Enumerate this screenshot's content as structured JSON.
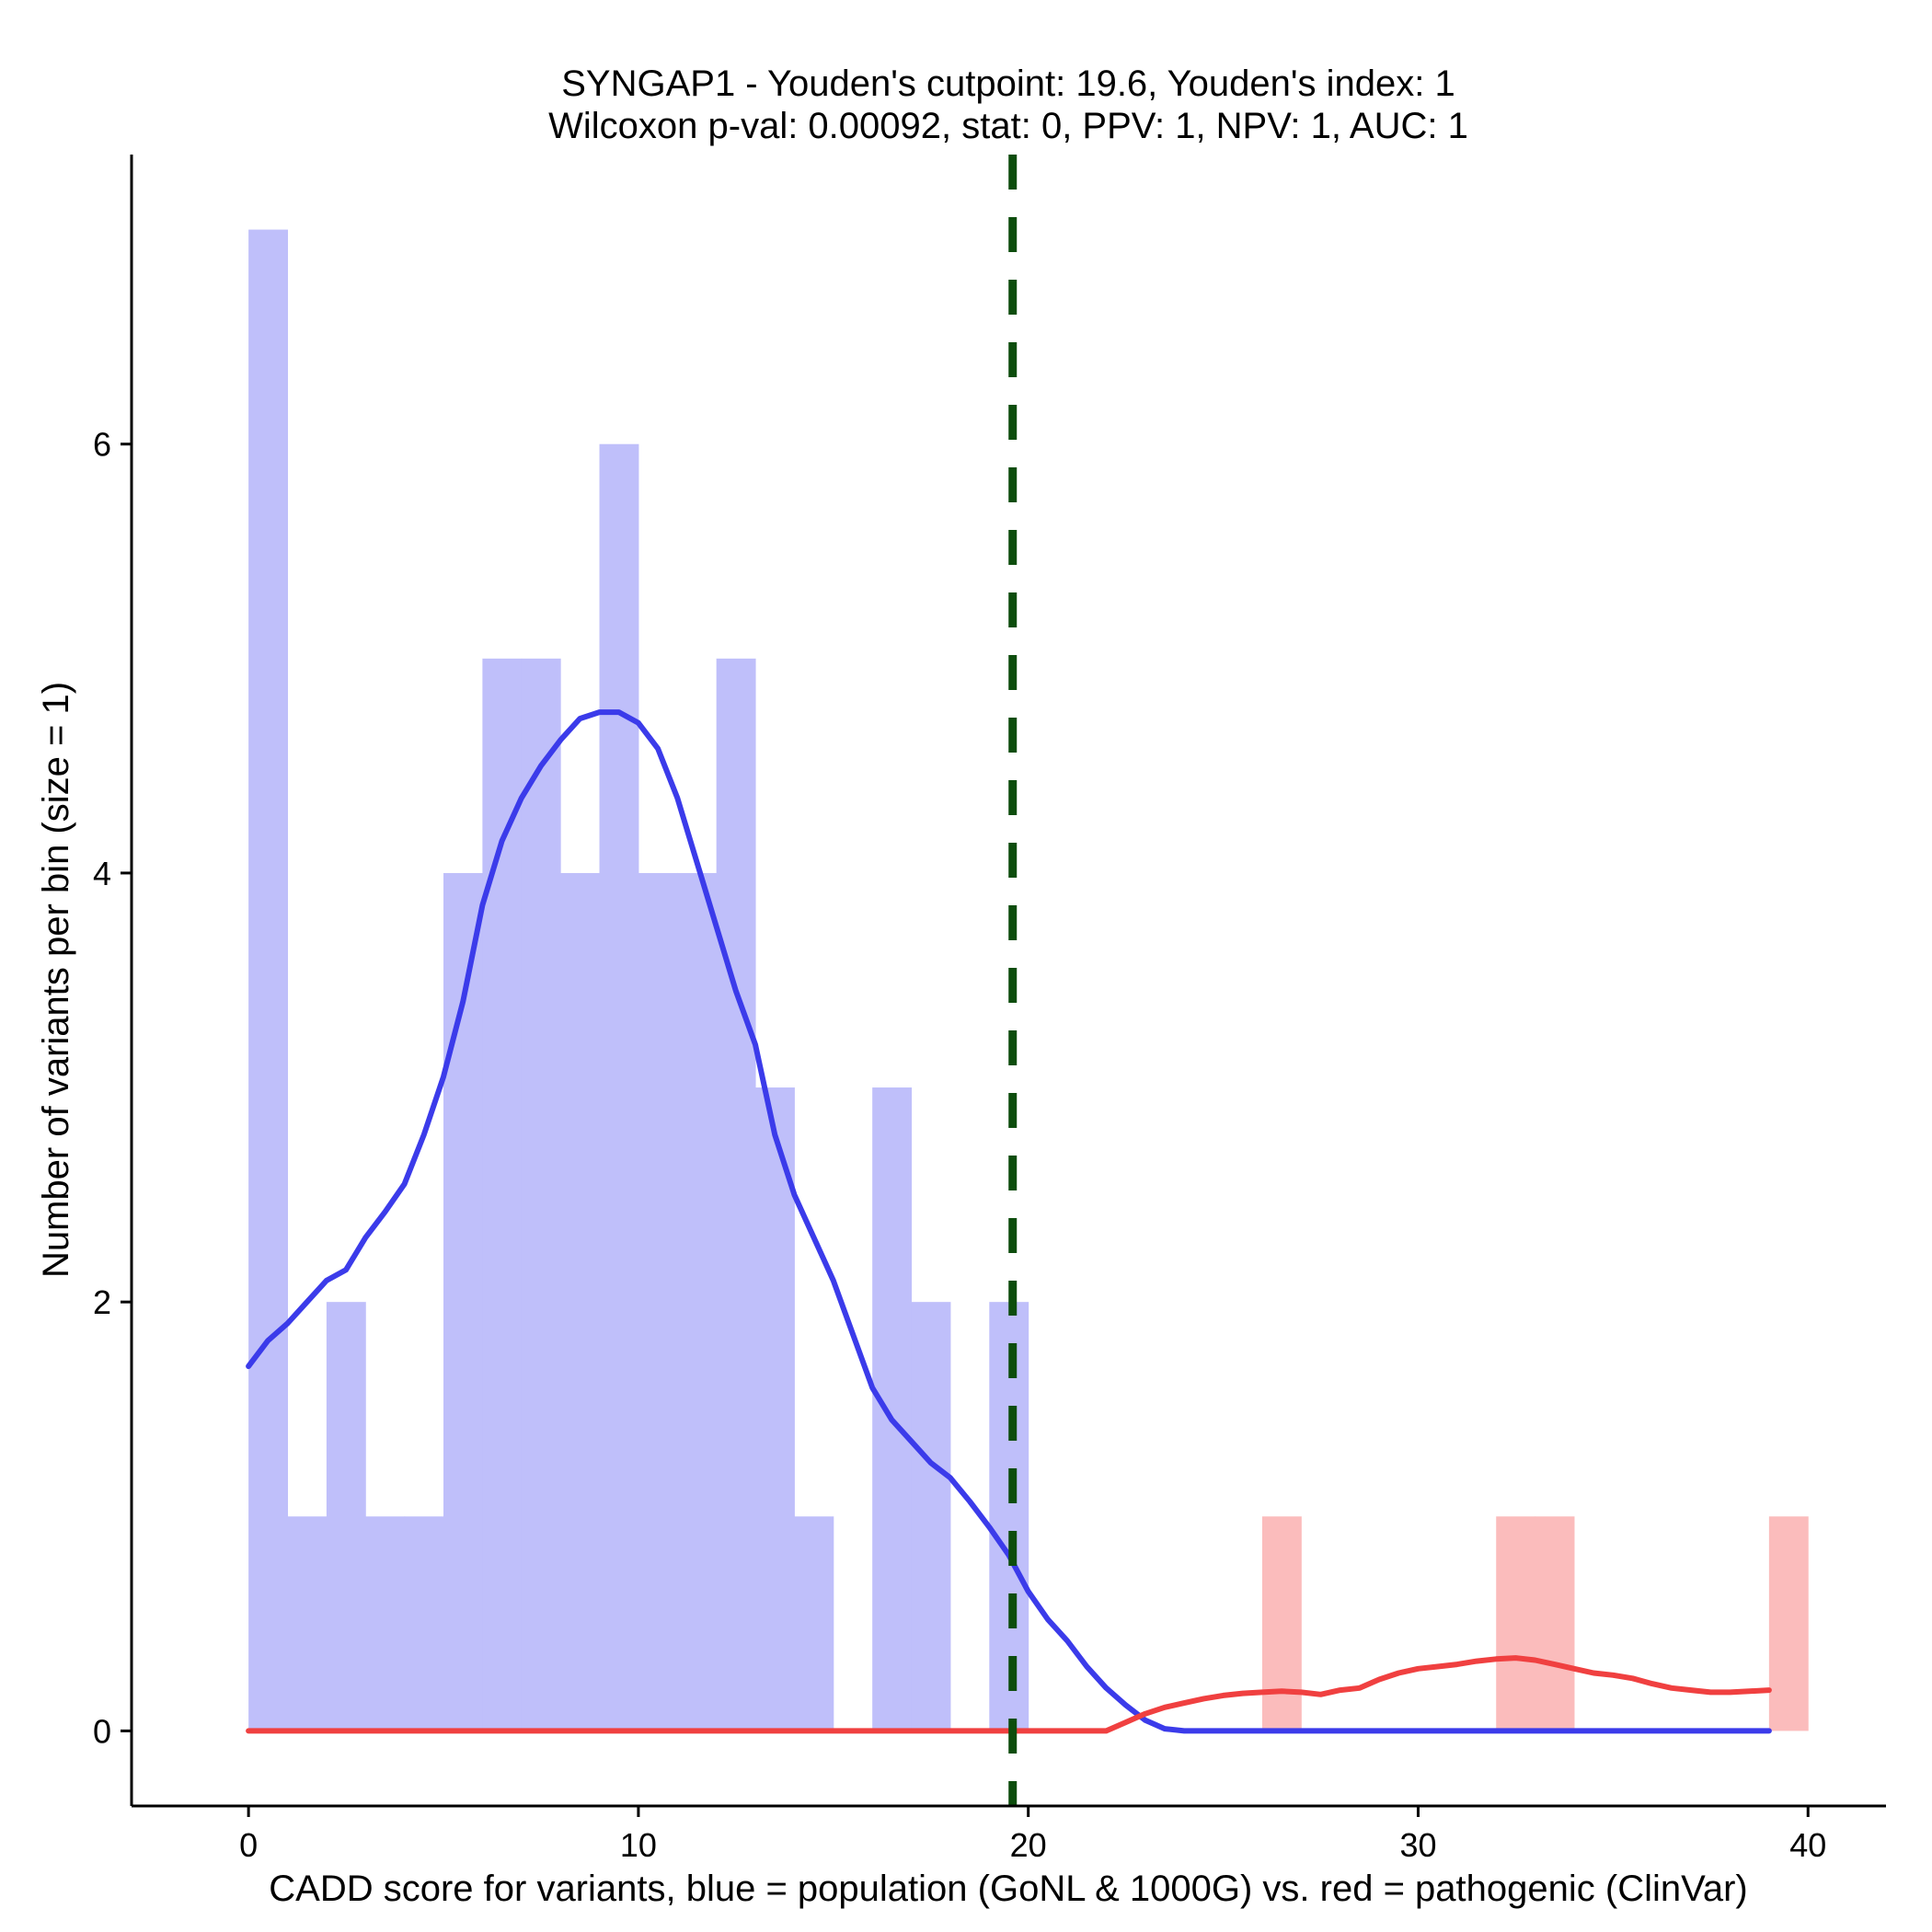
{
  "chart_data": {
    "type": "histogram",
    "title_line1": "SYNGAP1 - Youden's cutpoint: 19.6, Youden's index: 1",
    "title_line2": "Wilcoxon p-val: 0.00092, stat: 0, PPV: 1, NPV: 1, AUC: 1",
    "xlabel": "CADD score for variants, blue = population (GoNL & 1000G) vs. red = pathogenic (ClinVar)",
    "ylabel": "Number of variants per bin (size = 1)",
    "xlim": [
      -3,
      42
    ],
    "ylim": [
      -0.35,
      7.35
    ],
    "x_ticks": [
      0,
      10,
      20,
      30,
      40
    ],
    "y_ticks": [
      0,
      2,
      4,
      6
    ],
    "bin_width": 1,
    "cutpoint": 19.6,
    "colors": {
      "population_bar": "#bfbffa",
      "population_line": "#3b3bea",
      "pathogenic_bar": "#fbbcbc",
      "pathogenic_line": "#f04040",
      "cutpoint_line": "#0d4d0d"
    },
    "series": [
      {
        "key": "population",
        "bins": [
          {
            "x": 0,
            "count": 7
          },
          {
            "x": 1,
            "count": 1
          },
          {
            "x": 2,
            "count": 2
          },
          {
            "x": 3,
            "count": 1
          },
          {
            "x": 4,
            "count": 1
          },
          {
            "x": 5,
            "count": 4
          },
          {
            "x": 6,
            "count": 5
          },
          {
            "x": 7,
            "count": 5
          },
          {
            "x": 8,
            "count": 4
          },
          {
            "x": 9,
            "count": 6
          },
          {
            "x": 10,
            "count": 4
          },
          {
            "x": 11,
            "count": 4
          },
          {
            "x": 12,
            "count": 5
          },
          {
            "x": 13,
            "count": 3
          },
          {
            "x": 14,
            "count": 1
          },
          {
            "x": 16,
            "count": 3
          },
          {
            "x": 17,
            "count": 2
          },
          {
            "x": 19,
            "count": 2
          }
        ],
        "density": [
          [
            0,
            1.7
          ],
          [
            0.5,
            1.82
          ],
          [
            1,
            1.9
          ],
          [
            1.5,
            2.0
          ],
          [
            2,
            2.1
          ],
          [
            2.5,
            2.15
          ],
          [
            3,
            2.3
          ],
          [
            3.5,
            2.42
          ],
          [
            4,
            2.55
          ],
          [
            4.5,
            2.78
          ],
          [
            5,
            3.05
          ],
          [
            5.5,
            3.4
          ],
          [
            6,
            3.85
          ],
          [
            6.5,
            4.15
          ],
          [
            7,
            4.35
          ],
          [
            7.5,
            4.5
          ],
          [
            8,
            4.62
          ],
          [
            8.5,
            4.72
          ],
          [
            9,
            4.75
          ],
          [
            9.5,
            4.75
          ],
          [
            10,
            4.7
          ],
          [
            10.5,
            4.58
          ],
          [
            11,
            4.35
          ],
          [
            11.5,
            4.05
          ],
          [
            12,
            3.75
          ],
          [
            12.5,
            3.45
          ],
          [
            13,
            3.2
          ],
          [
            13.5,
            2.78
          ],
          [
            14,
            2.5
          ],
          [
            14.5,
            2.3
          ],
          [
            15,
            2.1
          ],
          [
            15.5,
            1.85
          ],
          [
            16,
            1.6
          ],
          [
            16.5,
            1.45
          ],
          [
            17,
            1.35
          ],
          [
            17.5,
            1.25
          ],
          [
            18,
            1.18
          ],
          [
            18.5,
            1.07
          ],
          [
            19,
            0.95
          ],
          [
            19.5,
            0.82
          ],
          [
            20,
            0.65
          ],
          [
            20.5,
            0.52
          ],
          [
            21,
            0.42
          ],
          [
            21.5,
            0.3
          ],
          [
            22,
            0.2
          ],
          [
            22.5,
            0.12
          ],
          [
            23,
            0.05
          ],
          [
            23.5,
            0.01
          ],
          [
            24,
            0.0
          ],
          [
            39,
            0.0
          ]
        ]
      },
      {
        "key": "pathogenic",
        "bins": [
          {
            "x": 26,
            "count": 1
          },
          {
            "x": 32,
            "count": 1
          },
          {
            "x": 33,
            "count": 1
          },
          {
            "x": 39,
            "count": 1
          }
        ],
        "density": [
          [
            0,
            0.0
          ],
          [
            22,
            0.0
          ],
          [
            22.5,
            0.04
          ],
          [
            23,
            0.08
          ],
          [
            23.5,
            0.11
          ],
          [
            24,
            0.13
          ],
          [
            24.5,
            0.15
          ],
          [
            25,
            0.165
          ],
          [
            25.5,
            0.175
          ],
          [
            26,
            0.18
          ],
          [
            26.5,
            0.185
          ],
          [
            27,
            0.18
          ],
          [
            27.5,
            0.17
          ],
          [
            28,
            0.19
          ],
          [
            28.5,
            0.2
          ],
          [
            29,
            0.24
          ],
          [
            29.5,
            0.27
          ],
          [
            30,
            0.29
          ],
          [
            30.5,
            0.3
          ],
          [
            31,
            0.31
          ],
          [
            31.5,
            0.325
          ],
          [
            32,
            0.335
          ],
          [
            32.5,
            0.34
          ],
          [
            33,
            0.33
          ],
          [
            33.5,
            0.31
          ],
          [
            34,
            0.29
          ],
          [
            34.5,
            0.27
          ],
          [
            35,
            0.26
          ],
          [
            35.5,
            0.245
          ],
          [
            36,
            0.22
          ],
          [
            36.5,
            0.2
          ],
          [
            37,
            0.19
          ],
          [
            37.5,
            0.18
          ],
          [
            38,
            0.18
          ],
          [
            38.5,
            0.185
          ],
          [
            39,
            0.19
          ]
        ]
      }
    ]
  }
}
